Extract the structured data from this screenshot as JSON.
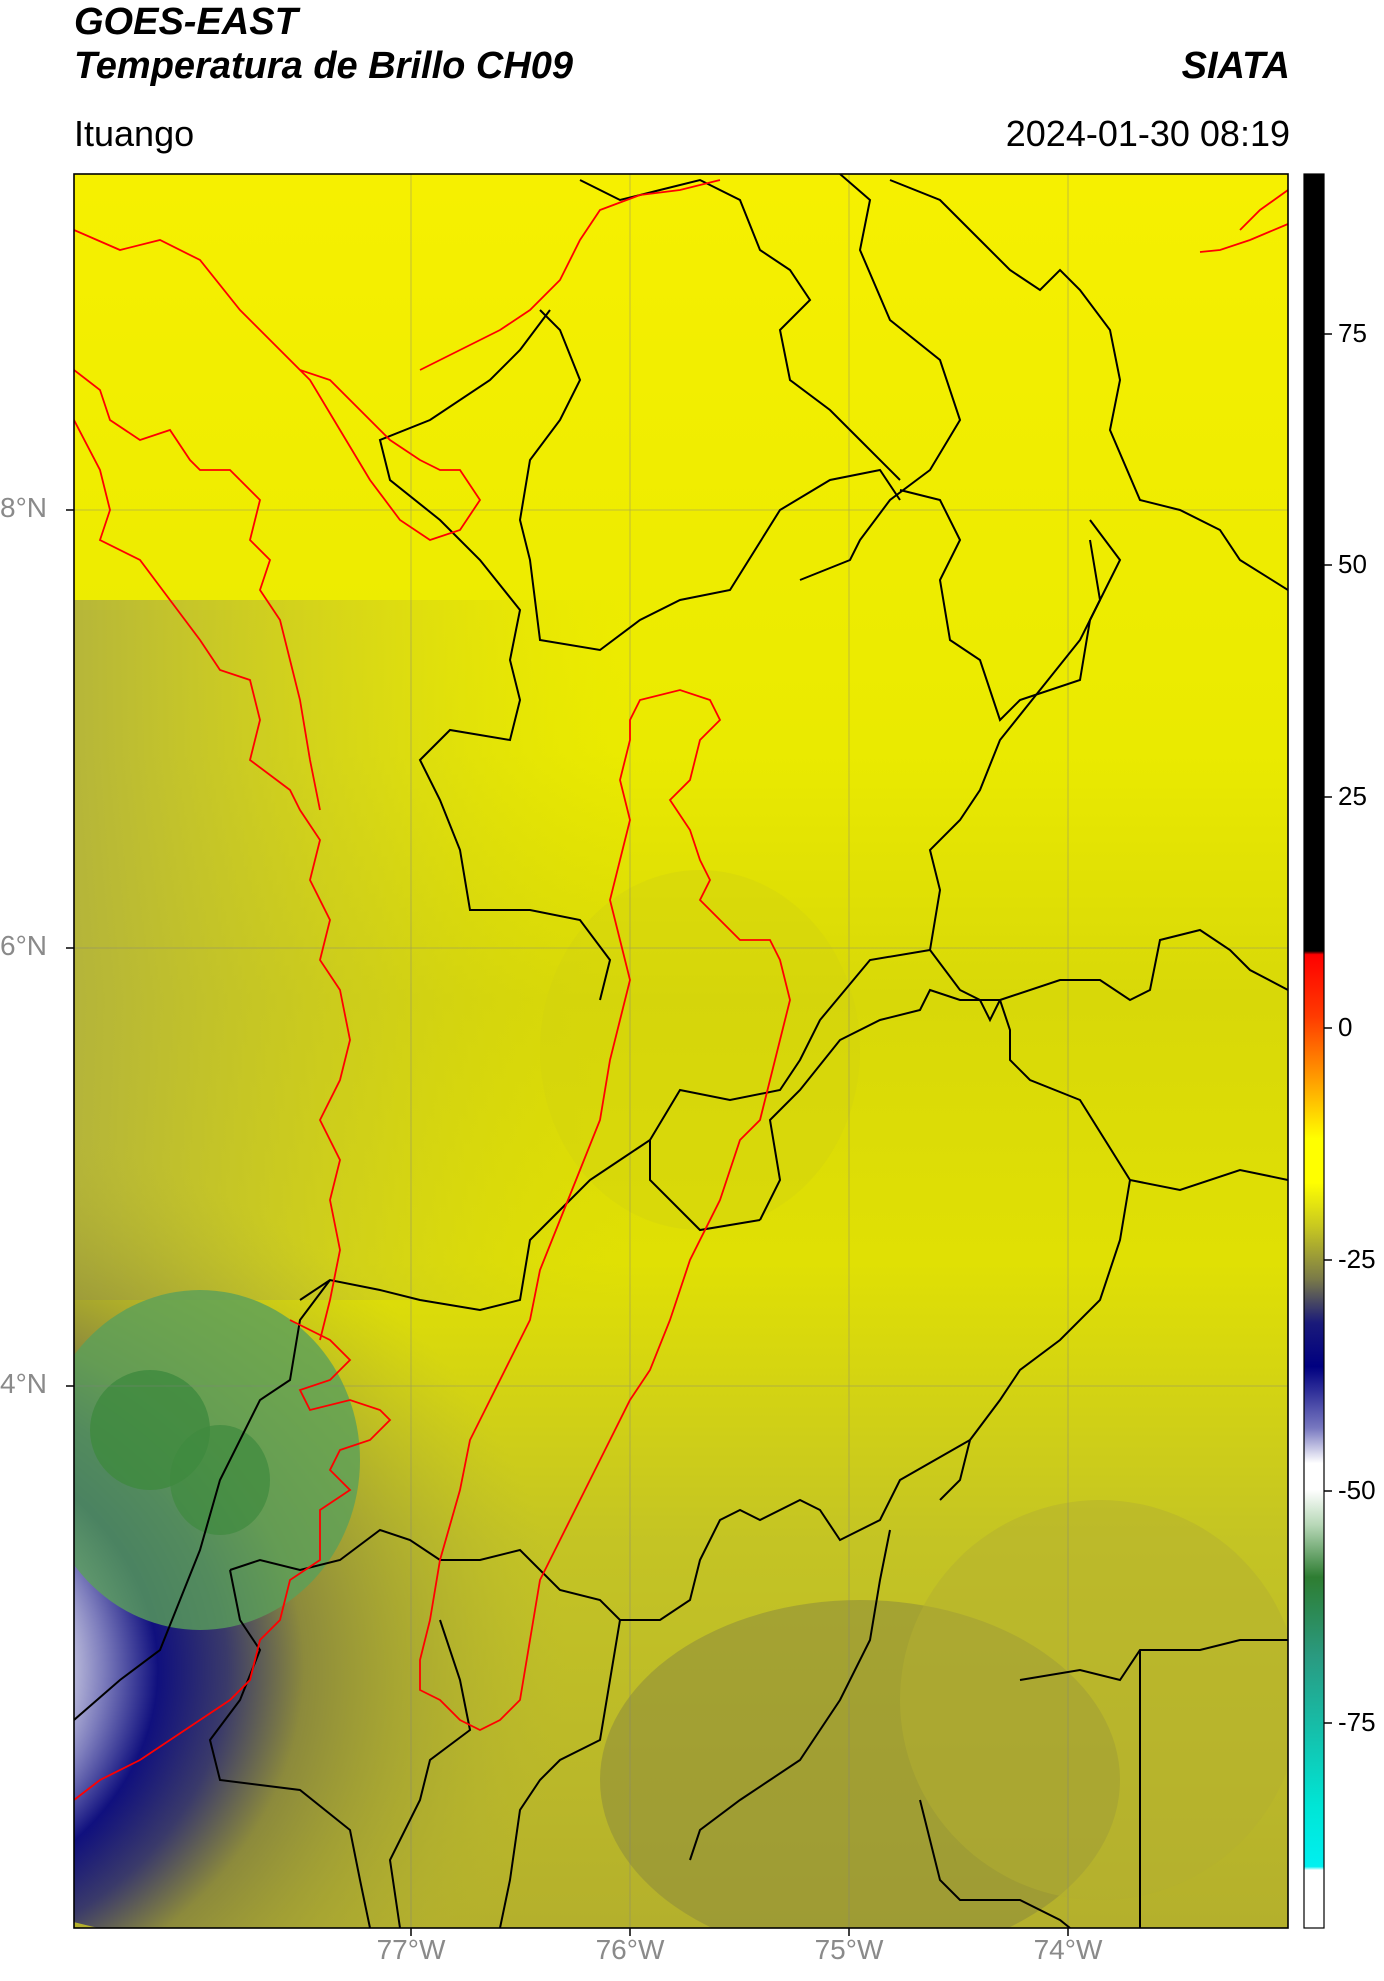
{
  "header": {
    "satellite": "GOES-EAST",
    "product": "Temperatura de Brillo CH09",
    "organization": "SIATA",
    "location": "Ituango",
    "datetime": "2024-01-30 08:19"
  },
  "axes": {
    "lat_labels": [
      "8°N",
      "6°N",
      "4°N"
    ],
    "lon_labels": [
      "77°W",
      "76°W",
      "75°W",
      "74°W"
    ]
  },
  "colorbar": {
    "tick_labels": [
      "75",
      "50",
      "25",
      "0",
      "-25",
      "-50",
      "-75"
    ],
    "colors": {
      "black": "#000000",
      "red": "#ff0000",
      "orange": "#ff8c00",
      "yellow": "#ffff00",
      "olive": "#8a8a3a",
      "navy": "#0a0a80",
      "white": "#ffffff",
      "green": "#2e7d32",
      "cyan": "#00e5e5"
    }
  },
  "map_colors": {
    "yellow": "#f2f200",
    "olive": "#b8b830",
    "dark_olive": "#7a7a48",
    "navy": "#0d0d7a",
    "white": "#f4f4f4",
    "green": "#5fa05f",
    "boundary_red": "#ff0000",
    "boundary_black": "#000000"
  }
}
